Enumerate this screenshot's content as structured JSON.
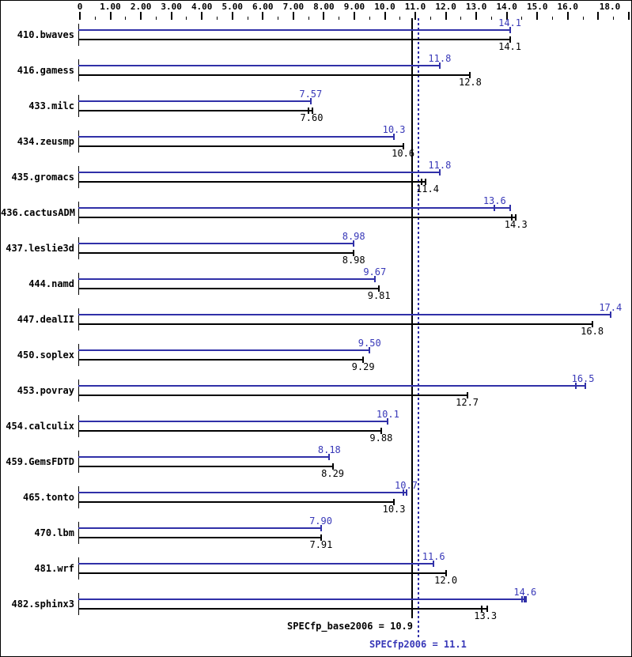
{
  "chart_data": {
    "type": "bar",
    "orientation": "horizontal",
    "title": "",
    "legend": "none",
    "grid": false,
    "colors": {
      "peak_bar": "#3030a8",
      "peak_text": "#3838b8",
      "base": "#000000"
    },
    "axis": {
      "position": "top",
      "range": [
        0,
        18
      ],
      "major_tick_step": 1,
      "minor_tick_step": 0.5,
      "labels": [
        {
          "value": 0,
          "text": "0"
        },
        {
          "value": 1,
          "text": "1.00"
        },
        {
          "value": 2,
          "text": "2.00"
        },
        {
          "value": 3,
          "text": "3.00"
        },
        {
          "value": 4,
          "text": "4.00"
        },
        {
          "value": 5,
          "text": "5.00"
        },
        {
          "value": 6,
          "text": "6.00"
        },
        {
          "value": 7,
          "text": "7.00"
        },
        {
          "value": 8,
          "text": "8.00"
        },
        {
          "value": 9,
          "text": "9.00"
        },
        {
          "value": 10,
          "text": "10.0"
        },
        {
          "value": 11,
          "text": "11.0"
        },
        {
          "value": 12,
          "text": "12.0"
        },
        {
          "value": 13,
          "text": "13.0"
        },
        {
          "value": 14,
          "text": "14.0"
        },
        {
          "value": 15,
          "text": "15.0"
        },
        {
          "value": 16,
          "text": "16.0"
        },
        {
          "value": 18,
          "text": "18.0"
        }
      ]
    },
    "benchmarks": [
      {
        "name": "410.bwaves",
        "peak": {
          "label": "14.1",
          "value": 14.1
        },
        "base": {
          "label": "14.1",
          "value": 14.1
        }
      },
      {
        "name": "416.gamess",
        "peak": {
          "label": "11.8",
          "value": 11.8
        },
        "base": {
          "label": "12.8",
          "value": 12.8
        }
      },
      {
        "name": "433.milc",
        "peak": {
          "label": "7.57",
          "value": 7.57
        },
        "base": {
          "label": "7.60",
          "value": 7.6,
          "end": 7.63,
          "ticks": [
            7.5,
            7.63
          ]
        }
      },
      {
        "name": "434.zeusmp",
        "peak": {
          "label": "10.3",
          "value": 10.3
        },
        "base": {
          "label": "10.6",
          "value": 10.6
        }
      },
      {
        "name": "435.gromacs",
        "peak": {
          "label": "11.8",
          "value": 11.8
        },
        "base": {
          "label": "11.4",
          "value": 11.4,
          "end": 11.33,
          "ticks": [
            11.2,
            11.33
          ]
        }
      },
      {
        "name": "436.cactusADM",
        "peak": {
          "label": "13.6",
          "value": 13.6,
          "end": 14.1,
          "ticks": [
            13.6,
            14.1
          ]
        },
        "base": {
          "label": "14.3",
          "value": 14.3,
          "end": 14.3,
          "ticks": [
            14.17,
            14.3
          ]
        }
      },
      {
        "name": "437.leslie3d",
        "peak": {
          "label": "8.98",
          "value": 8.98
        },
        "base": {
          "label": "8.98",
          "value": 8.98
        }
      },
      {
        "name": "444.namd",
        "peak": {
          "label": "9.67",
          "value": 9.67
        },
        "base": {
          "label": "9.81",
          "value": 9.81
        }
      },
      {
        "name": "447.dealII",
        "peak": {
          "label": "17.4",
          "value": 17.4
        },
        "base": {
          "label": "16.8",
          "value": 16.8
        }
      },
      {
        "name": "450.soplex",
        "peak": {
          "label": "9.50",
          "value": 9.5
        },
        "base": {
          "label": "9.29",
          "value": 9.29
        }
      },
      {
        "name": "453.povray",
        "peak": {
          "label": "16.5",
          "value": 16.5,
          "end": 16.58,
          "ticks": [
            16.27,
            16.58
          ]
        },
        "base": {
          "label": "12.7",
          "value": 12.7
        }
      },
      {
        "name": "454.calculix",
        "peak": {
          "label": "10.1",
          "value": 10.1
        },
        "base": {
          "label": "9.88",
          "value": 9.88
        }
      },
      {
        "name": "459.GemsFDTD",
        "peak": {
          "label": "8.18",
          "value": 8.18
        },
        "base": {
          "label": "8.29",
          "value": 8.29
        }
      },
      {
        "name": "465.tonto",
        "peak": {
          "label": "10.7",
          "value": 10.7,
          "end": 10.72,
          "ticks": [
            10.62,
            10.72
          ]
        },
        "base": {
          "label": "10.3",
          "value": 10.3
        }
      },
      {
        "name": "470.lbm",
        "peak": {
          "label": "7.90",
          "value": 7.9
        },
        "base": {
          "label": "7.91",
          "value": 7.91
        }
      },
      {
        "name": "481.wrf",
        "peak": {
          "label": "11.6",
          "value": 11.6
        },
        "base": {
          "label": "12.0",
          "value": 12.0
        }
      },
      {
        "name": "482.sphinx3",
        "peak": {
          "label": "14.6",
          "value": 14.6,
          "end": 14.63,
          "ticks": [
            14.5,
            14.57,
            14.63
          ]
        },
        "base": {
          "label": "13.3",
          "value": 13.3,
          "end": 13.35,
          "ticks": [
            13.17,
            13.35
          ]
        }
      }
    ],
    "means": {
      "base": {
        "label": "SPECfp_base2006 = 10.9",
        "value": 10.9,
        "line_style": "solid"
      },
      "peak": {
        "label": "SPECfp2006 = 11.1",
        "value": 11.1,
        "line_style": "dotted"
      }
    }
  }
}
